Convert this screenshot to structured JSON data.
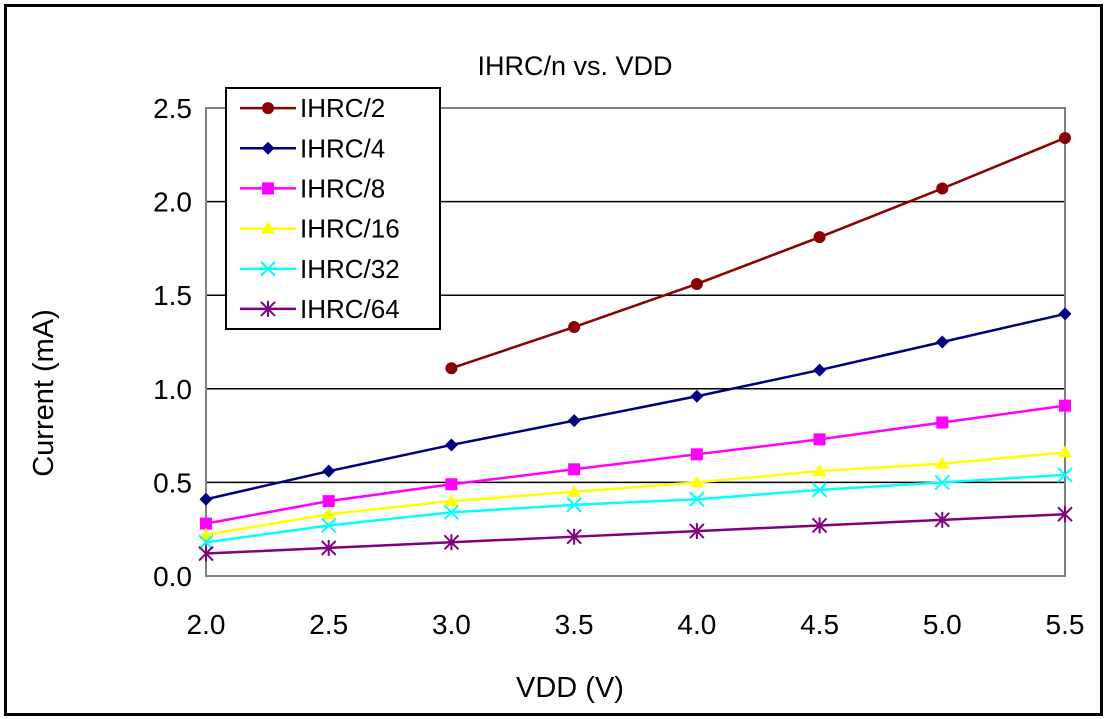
{
  "chart_data": {
    "type": "line",
    "title": "IHRC/n vs. VDD",
    "xlabel": "VDD (V)",
    "ylabel": "Current (mA)",
    "xlim": [
      2.0,
      5.5
    ],
    "ylim": [
      0.0,
      2.5
    ],
    "x_ticks": [
      "2.0",
      "2.5",
      "3.0",
      "3.5",
      "4.0",
      "4.5",
      "5.0",
      "5.5"
    ],
    "y_ticks": [
      "0.0",
      "0.5",
      "1.0",
      "1.5",
      "2.0",
      "2.5"
    ],
    "grid": "horizontal",
    "legend_position": "top-left",
    "series": [
      {
        "name": "IHRC/2",
        "color": "#8B0000",
        "marker": "circle",
        "x": [
          3.0,
          3.5,
          4.0,
          4.5,
          5.0,
          5.5
        ],
        "y": [
          1.11,
          1.33,
          1.56,
          1.81,
          2.07,
          2.34
        ]
      },
      {
        "name": "IHRC/4",
        "color": "#000080",
        "marker": "diamond",
        "x": [
          2.0,
          2.5,
          3.0,
          3.5,
          4.0,
          4.5,
          5.0,
          5.5
        ],
        "y": [
          0.41,
          0.56,
          0.7,
          0.83,
          0.96,
          1.1,
          1.25,
          1.4
        ]
      },
      {
        "name": "IHRC/8",
        "color": "#FF00FF",
        "marker": "square",
        "x": [
          2.0,
          2.5,
          3.0,
          3.5,
          4.0,
          4.5,
          5.0,
          5.5
        ],
        "y": [
          0.28,
          0.4,
          0.49,
          0.57,
          0.65,
          0.73,
          0.82,
          0.91
        ]
      },
      {
        "name": "IHRC/16",
        "color": "#FFFF00",
        "marker": "triangle",
        "x": [
          2.0,
          2.5,
          3.0,
          3.5,
          4.0,
          4.5,
          5.0,
          5.5
        ],
        "y": [
          0.22,
          0.33,
          0.4,
          0.45,
          0.5,
          0.56,
          0.6,
          0.66
        ]
      },
      {
        "name": "IHRC/32",
        "color": "#00FFFF",
        "marker": "x",
        "x": [
          2.0,
          2.5,
          3.0,
          3.5,
          4.0,
          4.5,
          5.0,
          5.5
        ],
        "y": [
          0.18,
          0.27,
          0.34,
          0.38,
          0.41,
          0.46,
          0.5,
          0.54
        ]
      },
      {
        "name": "IHRC/64",
        "color": "#800080",
        "marker": "asterisk",
        "x": [
          2.0,
          2.5,
          3.0,
          3.5,
          4.0,
          4.5,
          5.0,
          5.5
        ],
        "y": [
          0.12,
          0.15,
          0.18,
          0.21,
          0.24,
          0.27,
          0.3,
          0.33
        ]
      }
    ]
  }
}
